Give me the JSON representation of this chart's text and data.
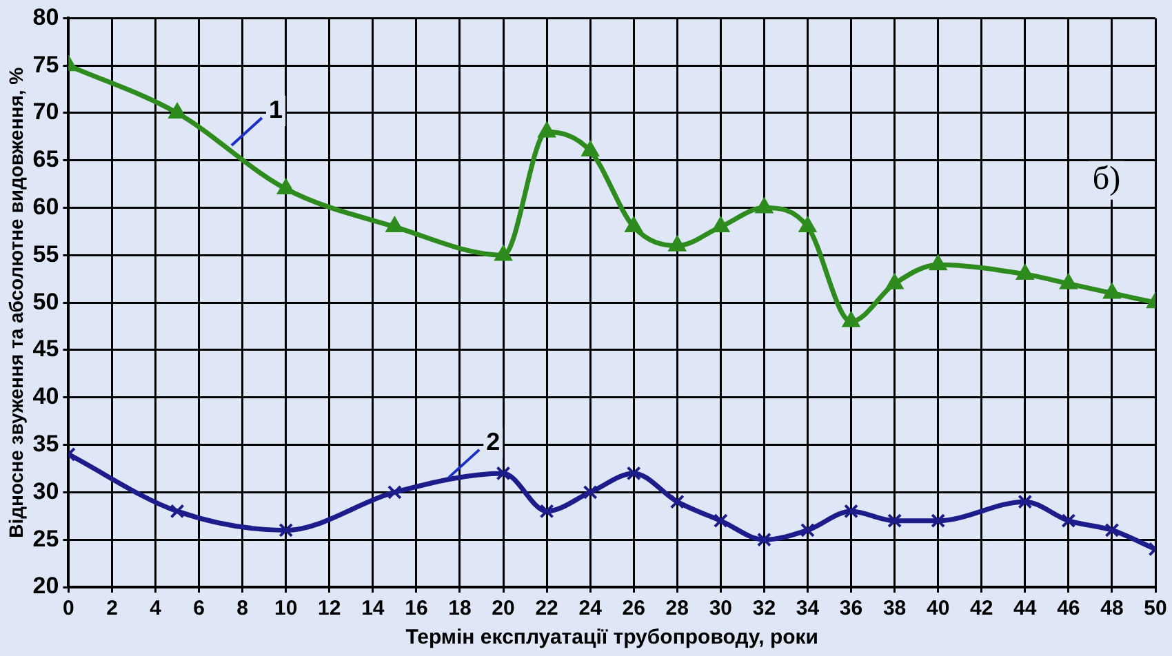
{
  "chart_data": {
    "type": "line",
    "xlabel": "Термін експлуатації трубопроводу, роки",
    "ylabel": "Відносне звуження та абсолютне видовження, %",
    "xlim": [
      0,
      50
    ],
    "xticks": [
      0,
      2,
      4,
      6,
      8,
      10,
      12,
      14,
      16,
      18,
      20,
      22,
      24,
      26,
      28,
      30,
      32,
      34,
      36,
      38,
      40,
      42,
      44,
      46,
      48,
      50
    ],
    "ylim": [
      20,
      80
    ],
    "yticks": [
      20,
      25,
      30,
      35,
      40,
      45,
      50,
      55,
      60,
      65,
      70,
      75,
      80
    ],
    "grid": true,
    "legend": false,
    "series": [
      {
        "name": "1",
        "color": "#2e8b1e",
        "marker": "triangle",
        "x": [
          0,
          5,
          10,
          15,
          20,
          22,
          24,
          26,
          28,
          30,
          32,
          34,
          36,
          38,
          40,
          44,
          46,
          48,
          50
        ],
        "values": [
          75,
          70,
          62,
          58,
          55,
          68,
          66,
          58,
          56,
          58,
          60,
          58,
          48,
          52,
          54,
          53,
          52,
          51,
          50
        ]
      },
      {
        "name": "2",
        "color": "#1c1c8a",
        "marker": "cross",
        "x": [
          0,
          5,
          10,
          15,
          20,
          22,
          24,
          26,
          28,
          30,
          32,
          34,
          36,
          38,
          40,
          44,
          46,
          48,
          50
        ],
        "values": [
          34,
          28,
          26,
          30,
          32,
          28,
          30,
          32,
          29,
          27,
          25,
          26,
          28,
          27,
          27,
          29,
          27,
          26,
          24
        ]
      }
    ],
    "annotations": [
      "б)"
    ]
  }
}
